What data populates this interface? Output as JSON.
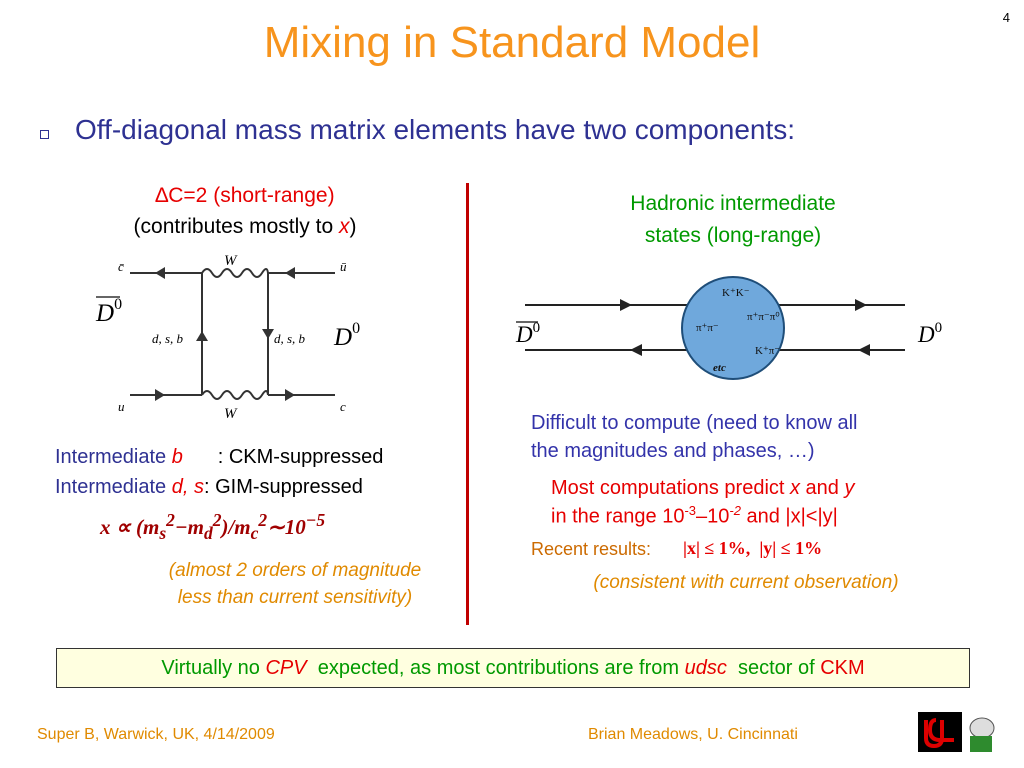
{
  "slide_number": "4",
  "title": "Mixing in Standard Model",
  "bullet": "Off-diagonal mass matrix elements have two components:",
  "left": {
    "heading": "∆C=2 (short-range)",
    "subheading": [
      "(contributes mostly to ",
      "x",
      ")"
    ],
    "diagram": {
      "top_left": "c̄",
      "top_boson": "W",
      "top_right": "ū",
      "bottom_left": "u",
      "bottom_boson": "W",
      "bottom_right": "c",
      "left_quarks": "d, s, b",
      "right_quarks": "d, s, b",
      "meson_in": [
        "D",
        "0"
      ],
      "meson_out": [
        "D",
        "0"
      ]
    },
    "line1": [
      "Intermediate ",
      "b",
      ": CKM-suppressed"
    ],
    "line2": [
      "Intermediate ",
      "d, s",
      ": GIM-suppressed"
    ],
    "formula": [
      "x ∝ (m",
      "s",
      "2",
      "−m",
      "d",
      "2",
      ")/m",
      "c",
      "2",
      "∼10",
      "−5"
    ],
    "note": [
      "(almost 2 orders of magnitude",
      "less than current sensitivity)"
    ]
  },
  "right": {
    "heading": [
      "Hadronic intermediate",
      "states (long-range)"
    ],
    "diagram": {
      "meson_in": [
        "D",
        "0"
      ],
      "meson_out": [
        "D",
        "0"
      ],
      "states": [
        "K⁺K⁻",
        "π⁺π⁻π⁰",
        "π⁺π⁻",
        "K⁺π⁻",
        "etc"
      ]
    },
    "difficult": [
      "Difficult to compute (need to know all",
      "the magnitudes and phases, …)"
    ],
    "predict_line1": [
      "Most computations predict ",
      "x",
      " and ",
      "y"
    ],
    "predict_line2": [
      "in the range 10",
      "-3",
      "–10",
      "-2",
      " and |x|<|y|"
    ],
    "recent_label": "Recent results:",
    "recent_formula": [
      "|x| ≤ 1%,",
      "|y| ≤ 1%"
    ],
    "consistent": "(consistent with current observation)"
  },
  "box": [
    "Virtually no ",
    "CPV",
    " expected, as most contributions are from ",
    "udsc",
    " sector of ",
    "CKM"
  ],
  "footer": {
    "left": "Super B, Warwick, UK, 4/14/2009",
    "right": "Brian Meadows, U. Cincinnati"
  }
}
